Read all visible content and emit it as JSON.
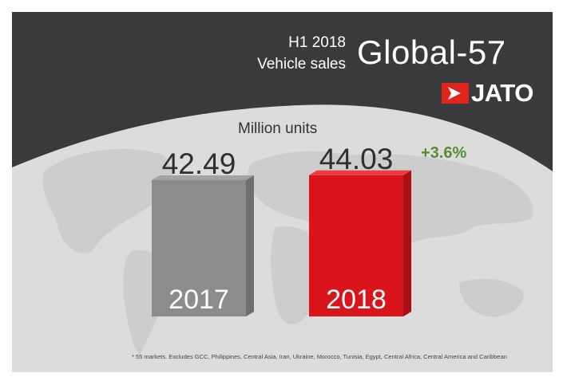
{
  "header": {
    "period": "H1 2018",
    "subtitle": "Vehicle sales",
    "title": "Global-57",
    "brand": "JATO"
  },
  "units_label": "Million units",
  "change_label": "+3.6%",
  "footnote": "* 55 markets. Excludes GCC, Philippines, Central Asia, Iran, Ukraine, Morocco, Tunisia, Egypt, Central Africa, Central America and Caribbean",
  "colors": {
    "header_bg": "#3a3a3c",
    "bar_2017": "#8c8c8c",
    "bar_2018": "#d9141b",
    "change": "#5a8a32",
    "brand": "#e1251b"
  },
  "chart_data": {
    "type": "bar",
    "categories": [
      "2017",
      "2018"
    ],
    "values": [
      42.49,
      44.03
    ],
    "value_labels": [
      "42.49",
      "44.03"
    ],
    "ylabel": "Million units"
  }
}
